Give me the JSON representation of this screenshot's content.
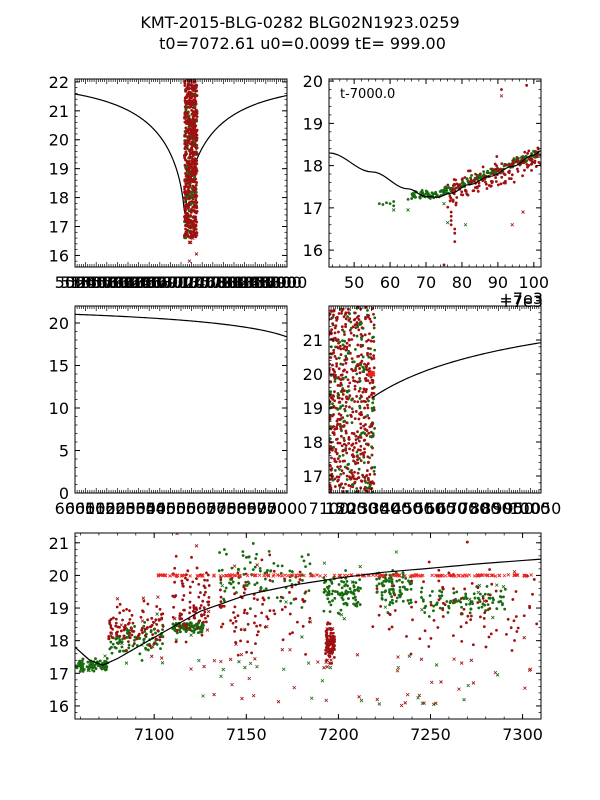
{
  "title": {
    "line1": "KMT-2015-BLG-0282 BLG02N1923.0259",
    "line2": " t0=7072.61 u0=0.0099 tE= 999.00"
  },
  "colors": {
    "data_dark_red": "#a01010",
    "data_green": "#1a6a10",
    "data_bright_red": "#ee2020",
    "model": "#000000",
    "frame": "#000000"
  },
  "chart_data": [
    {
      "id": "panel-top-left",
      "type": "scatter",
      "title": "",
      "xlabel": "",
      "ylabel": "",
      "xlim": [
        5000,
        9000
      ],
      "ylim": [
        22.1,
        15.6
      ],
      "y_inverted": true,
      "yticks": [
        "16",
        "17",
        "18",
        "19",
        "20",
        "21",
        "22"
      ],
      "xtick_labels_note": "overlapping illegible dense tick labels",
      "model_curve": {
        "t0": 7072.61,
        "peak_mag": 17.2,
        "baseline_mag": 22.0,
        "shape": "symmetric cusp"
      },
      "data_clusters": [
        {
          "series": "dark_red",
          "x_range": [
            7055,
            7310
          ],
          "y_range": [
            16.0,
            22.1
          ]
        },
        {
          "series": "green",
          "x_range": [
            7055,
            7310
          ],
          "y_range": [
            16.5,
            22.1
          ]
        }
      ]
    },
    {
      "id": "panel-top-right",
      "type": "scatter",
      "annotation": "t-7000.0",
      "x_offset_label": "+7e3",
      "xlim": [
        43,
        102
      ],
      "ylim": [
        20.05,
        15.6
      ],
      "y_inverted": true,
      "xticks": [
        "50",
        "60",
        "70",
        "80",
        "90",
        "100"
      ],
      "yticks": [
        "16",
        "17",
        "18",
        "19",
        "20"
      ],
      "model_curve": {
        "points": [
          [
            43,
            18.3
          ],
          [
            55,
            17.85
          ],
          [
            65,
            17.45
          ],
          [
            70,
            17.27
          ],
          [
            73,
            17.25
          ],
          [
            77,
            17.35
          ],
          [
            82,
            17.55
          ],
          [
            88,
            17.75
          ],
          [
            94,
            17.98
          ],
          [
            100,
            18.25
          ],
          [
            102,
            18.35
          ]
        ]
      }
    },
    {
      "id": "panel-middle-left",
      "type": "scatter",
      "xlim": [
        6000,
        7000
      ],
      "ylim": [
        22,
        0
      ],
      "y_inverted": true,
      "yticks": [
        "0",
        "5",
        "10",
        "15",
        "20"
      ],
      "xtick_labels_note": "overlapping illegible dense tick labels",
      "model_curve": {
        "points": [
          [
            6000,
            21.9
          ],
          [
            6300,
            21.75
          ],
          [
            6600,
            21.4
          ],
          [
            6800,
            20.9
          ],
          [
            6900,
            20.3
          ],
          [
            6960,
            19.6
          ],
          [
            7000,
            18.5
          ]
        ]
      }
    },
    {
      "id": "panel-middle-right",
      "type": "scatter",
      "x_offset_label": "+7e3",
      "xlim": [
        100,
        1050
      ],
      "ylim": [
        22.0,
        16.5
      ],
      "y_inverted": true,
      "yticks": [
        "17",
        "18",
        "19",
        "20",
        "21"
      ],
      "xtick_labels_note": "overlapping illegible dense tick labels",
      "model_curve": {
        "points": [
          [
            200,
            20.2
          ],
          [
            300,
            20.75
          ],
          [
            400,
            21.1
          ],
          [
            500,
            21.35
          ],
          [
            600,
            21.55
          ],
          [
            700,
            21.7
          ],
          [
            800,
            21.8
          ],
          [
            900,
            21.87
          ],
          [
            1050,
            21.93
          ]
        ]
      }
    },
    {
      "id": "panel-bottom",
      "type": "scatter",
      "xlim": [
        7057,
        7310
      ],
      "ylim": [
        21.3,
        15.6
      ],
      "y_inverted": true,
      "xticks": [
        "7100",
        "7150",
        "7200",
        "7250",
        "7300"
      ],
      "yticks": [
        "16",
        "17",
        "18",
        "19",
        "20",
        "21"
      ],
      "model_curve": {
        "points": [
          [
            7057,
            17.8
          ],
          [
            7065,
            17.4
          ],
          [
            7072,
            17.25
          ],
          [
            7080,
            17.45
          ],
          [
            7100,
            18.1
          ],
          [
            7125,
            18.9
          ],
          [
            7150,
            19.4
          ],
          [
            7175,
            19.7
          ],
          [
            7200,
            19.92
          ],
          [
            7225,
            20.1
          ],
          [
            7250,
            20.22
          ],
          [
            7275,
            20.35
          ],
          [
            7310,
            20.5
          ]
        ]
      },
      "data_clusters": [
        {
          "series": "green",
          "x_range": [
            7057,
            7075
          ],
          "y_range": [
            17.0,
            17.5
          ]
        },
        {
          "series": "green",
          "x_range": [
            7075,
            7105
          ],
          "y_range": [
            17.3,
            18.8
          ]
        },
        {
          "series": "dark_red",
          "x_range": [
            7075,
            7105
          ],
          "y_range": [
            17.5,
            19.5
          ]
        },
        {
          "series": "green",
          "x_range": [
            7110,
            7127
          ],
          "y_range": [
            18.1,
            18.7
          ]
        },
        {
          "series": "dark_red",
          "x_range": [
            7110,
            7130
          ],
          "y_range": [
            17.5,
            21.0
          ]
        },
        {
          "series": "green",
          "x_range": [
            7135,
            7185
          ],
          "y_range": [
            18.5,
            21.3
          ]
        },
        {
          "series": "dark_red",
          "x_range": [
            7135,
            7185
          ],
          "y_range": [
            16.6,
            21.3
          ]
        },
        {
          "series": "dark_red",
          "x_range": [
            7193,
            7198
          ],
          "y_range": [
            17.2,
            18.7
          ]
        },
        {
          "series": "green",
          "x_range": [
            7192,
            7212
          ],
          "y_range": [
            18.6,
            20.3
          ]
        },
        {
          "series": "green",
          "x_range": [
            7220,
            7240
          ],
          "y_range": [
            18.8,
            20.6
          ]
        },
        {
          "series": "green",
          "x_range": [
            7245,
            7292
          ],
          "y_range": [
            18.6,
            19.8
          ]
        },
        {
          "series": "dark_red",
          "x_range": [
            7218,
            7310
          ],
          "y_range": [
            16.8,
            21.2
          ]
        },
        {
          "series": "bright_red_x",
          "x_range": [
            7100,
            7310
          ],
          "y_range": [
            20.0,
            20.0
          ]
        }
      ]
    }
  ]
}
